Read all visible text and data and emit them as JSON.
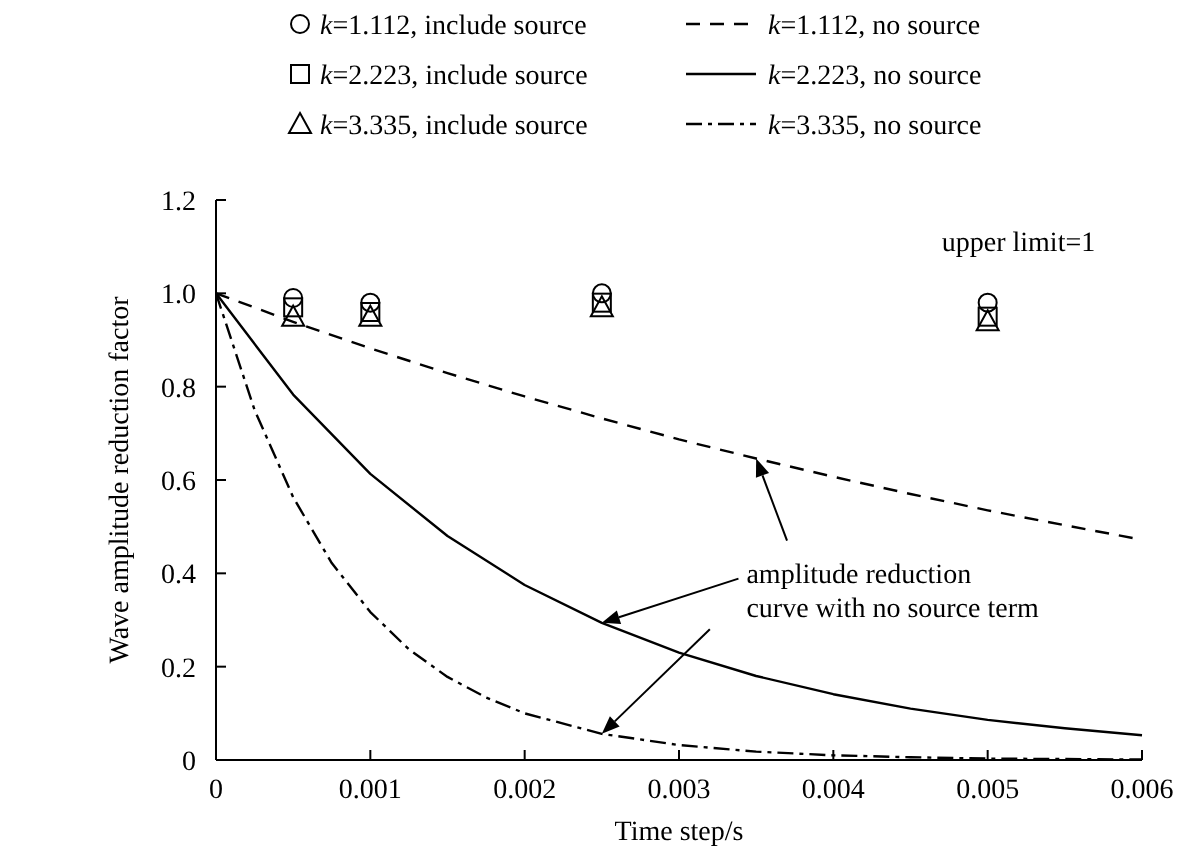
{
  "chart_data": {
    "type": "line",
    "xlabel": "Time step/s",
    "ylabel": "Wave amplitude reduction factor",
    "xlim": [
      0,
      0.006
    ],
    "ylim": [
      0,
      1.2
    ],
    "xticks": [
      0,
      0.001,
      0.002,
      0.003,
      0.004,
      0.005,
      0.006
    ],
    "yticks": [
      0,
      0.2,
      0.4,
      0.6,
      0.8,
      {
        "value": 1,
        "label": "1.0"
      },
      1.2
    ],
    "legend": "top",
    "grid": false,
    "annotations": [
      "upper limit=1",
      "amplitude reduction\ncurve with no source term"
    ],
    "series": [
      {
        "name": "k=1.112, include source",
        "type": "scatter",
        "marker": "circle",
        "color": "#000000",
        "x": [
          0.0005,
          0.001,
          0.0025,
          0.005
        ],
        "values": [
          0.99,
          0.98,
          1.0,
          0.98
        ]
      },
      {
        "name": "k=2.223, include source",
        "type": "scatter",
        "marker": "square",
        "color": "#000000",
        "x": [
          0.0005,
          0.001,
          0.0025,
          0.005
        ],
        "values": [
          0.97,
          0.96,
          0.98,
          0.95
        ]
      },
      {
        "name": "k=3.335, include source",
        "type": "scatter",
        "marker": "triangle",
        "color": "#000000",
        "x": [
          0.0005,
          0.001,
          0.0025,
          0.005
        ],
        "values": [
          0.95,
          0.95,
          0.97,
          0.94
        ]
      },
      {
        "name": "k=1.112, no source",
        "line_style": "dashed",
        "color": "#000000",
        "x": [
          0,
          0.0005,
          0.001,
          0.0015,
          0.002,
          0.0025,
          0.003,
          0.0035,
          0.004,
          0.0045,
          0.005,
          0.0055,
          0.006
        ],
        "values": [
          1.0,
          0.939,
          0.882,
          0.829,
          0.779,
          0.732,
          0.687,
          0.646,
          0.607,
          0.57,
          0.535,
          0.503,
          0.472
        ]
      },
      {
        "name": "k=2.223, no source",
        "line_style": "solid",
        "color": "#000000",
        "x": [
          0,
          0.0005,
          0.001,
          0.0015,
          0.002,
          0.0025,
          0.003,
          0.0035,
          0.004,
          0.0045,
          0.005,
          0.0055,
          0.006
        ],
        "values": [
          1.0,
          0.783,
          0.613,
          0.48,
          0.375,
          0.294,
          0.23,
          0.18,
          0.141,
          0.11,
          0.086,
          0.068,
          0.053
        ]
      },
      {
        "name": "k=3.335, no source",
        "line_style": "dashdot",
        "color": "#000000",
        "x": [
          0,
          0.00025,
          0.0005,
          0.00075,
          0.001,
          0.00125,
          0.0015,
          0.00175,
          0.002,
          0.0025,
          0.003,
          0.0035,
          0.004,
          0.0045,
          0.005,
          0.0055,
          0.006
        ],
        "values": [
          1.0,
          0.75,
          0.563,
          0.422,
          0.317,
          0.237,
          0.178,
          0.134,
          0.1,
          0.056,
          0.032,
          0.018,
          0.01,
          0.006,
          0.003,
          0.002,
          0.001
        ]
      }
    ]
  }
}
